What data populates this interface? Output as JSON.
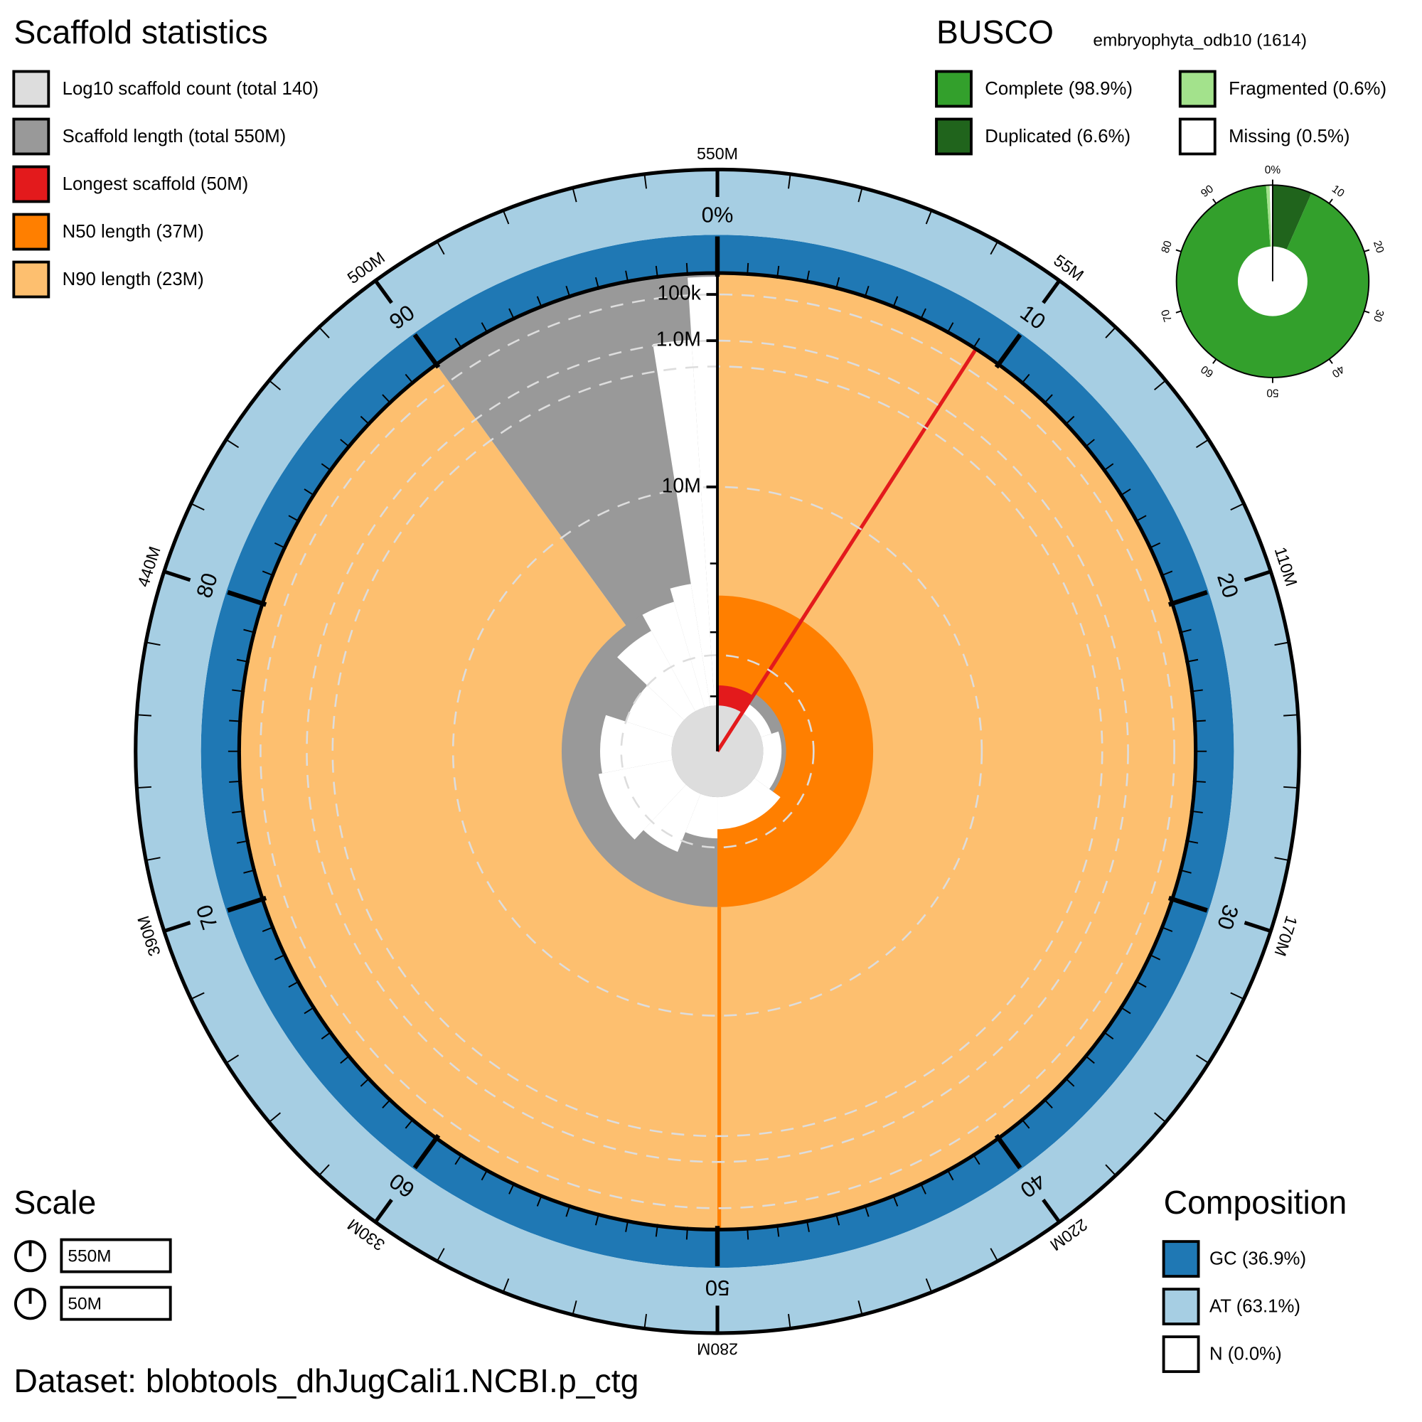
{
  "scaffold_statistics": {
    "title": "Scaffold statistics",
    "legend": [
      {
        "label": "Log10 scaffold count (total 140)",
        "color": "#dddddd"
      },
      {
        "label": "Scaffold length (total 550M)",
        "color": "#999999"
      },
      {
        "label": "Longest scaffold (50M)",
        "color": "#e31a1c"
      },
      {
        "label": "N50 length (37M)",
        "color": "#ff7f00"
      },
      {
        "label": "N90 length (23M)",
        "color": "#fdbf6f"
      }
    ]
  },
  "snail": {
    "total_length": 550,
    "longest_scaffold": 50,
    "length_ticks": [
      {
        "value": 55,
        "label": "55M"
      },
      {
        "value": 110,
        "label": "110M"
      },
      {
        "value": 165,
        "label": "170M"
      },
      {
        "value": 220,
        "label": "220M"
      },
      {
        "value": 275,
        "label": "280M"
      },
      {
        "value": 330,
        "label": "330M"
      },
      {
        "value": 385,
        "label": "390M"
      },
      {
        "value": 440,
        "label": "440M"
      },
      {
        "value": 495,
        "label": "500M"
      },
      {
        "value": 550,
        "label": "550M"
      }
    ],
    "percent_ticks": [
      {
        "value": 0,
        "label": "0%"
      },
      10,
      20,
      30,
      40,
      50,
      60,
      70,
      80,
      90
    ],
    "radial_ticks": [
      {
        "value": 0.1,
        "label": "100k"
      },
      {
        "value": 1,
        "label": "1.0M"
      },
      {
        "value": 10,
        "label": "10M"
      }
    ]
  },
  "busco": {
    "title": "BUSCO",
    "lineage": "embryophyta_odb10 (1614)",
    "legend": [
      {
        "label": "Complete (98.9%)",
        "color": "#33a02c",
        "value": 98.9
      },
      {
        "label": "Duplicated (6.6%)",
        "color": "#20641c",
        "value": 6.6
      },
      {
        "label": "Fragmented (0.6%)",
        "color": "#a3e28c",
        "value": 0.6
      },
      {
        "label": "Missing (0.5%)",
        "color": "#ffffff",
        "value": 0.5
      }
    ],
    "ticks": [
      {
        "value": 0,
        "label": "0%"
      },
      10,
      20,
      30,
      40,
      50,
      60,
      70,
      80,
      90
    ]
  },
  "scale": {
    "title": "Scale",
    "items": [
      "550M",
      "50M"
    ]
  },
  "composition": {
    "title": "Composition",
    "legend": [
      {
        "label": "GC (36.9%)",
        "color": "#1f78b4",
        "value": 36.9
      },
      {
        "label": "AT (63.1%)",
        "color": "#a6cee3",
        "value": 63.1
      },
      {
        "label": "N (0.0%)",
        "color": "#ffffff",
        "value": 0.0
      }
    ]
  },
  "dataset": "Dataset: blobtools_dhJugCali1.NCBI.p_ctg"
}
